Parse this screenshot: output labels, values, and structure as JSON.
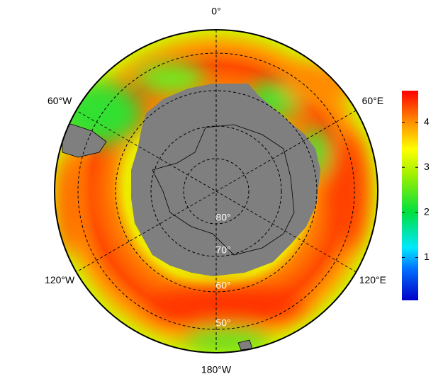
{
  "map": {
    "lon_labels": [
      "0°",
      "60°E",
      "120°E",
      "180°W",
      "120°W",
      "60°W"
    ],
    "lat_labels": [
      "80°",
      "70°",
      "60°",
      "50°"
    ]
  },
  "colorbar": {
    "lim": [
      0.05,
      4.7
    ],
    "ticks": [
      1,
      2,
      3,
      4
    ]
  }
}
